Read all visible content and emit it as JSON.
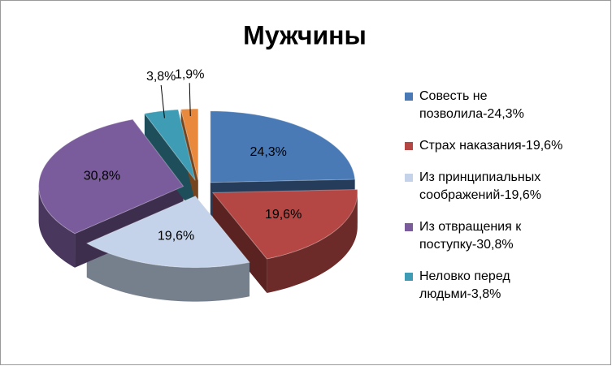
{
  "chart_data": {
    "type": "pie",
    "title": "Мужчины",
    "categories": [
      "Совесть не позволила-24,3%",
      "Страх наказания-19,6%",
      "Из принципиальных соображений-19,6%",
      "Из отвращения к поступку-30,8%",
      "Неловко перед людьми-3,8%",
      null
    ],
    "values": [
      24.3,
      19.6,
      19.6,
      30.8,
      3.8,
      1.9
    ],
    "value_labels": [
      "24,3%",
      "19,6%",
      "19,6%",
      "30,8%",
      "3,8%",
      "1,9%"
    ],
    "colors": [
      "#4a7ab5",
      "#b44643",
      "#c5d3ea",
      "#7a5c9c",
      "#3e9cb5",
      "#e8893d"
    ]
  }
}
